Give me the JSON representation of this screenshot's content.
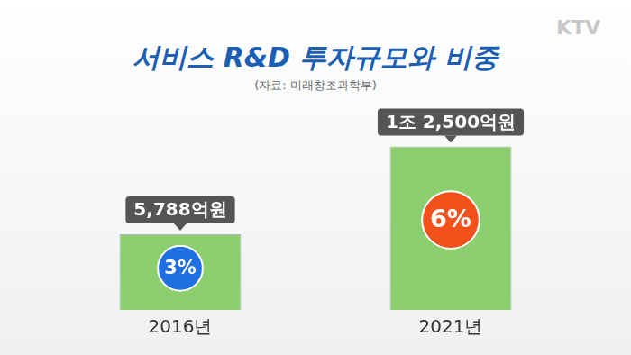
{
  "chart_data": {
    "type": "bar",
    "title": "서비스 R&D 투자규모와 비중",
    "subtitle": "(자료: 미래창조과학부)",
    "watermark": "KTV",
    "categories": [
      "2016년",
      "2021년"
    ],
    "values": [
      5788,
      12500
    ],
    "value_labels": [
      "5,788억원",
      "1조 2,500억원"
    ],
    "data_labels": true,
    "color": "#8ccf6e",
    "share_values": [
      3,
      6
    ],
    "share_labels": [
      "3%",
      "6%"
    ],
    "share_colors": [
      "#1f6fe0",
      "#f2511b"
    ],
    "grid": false,
    "tick_labels": "x"
  }
}
